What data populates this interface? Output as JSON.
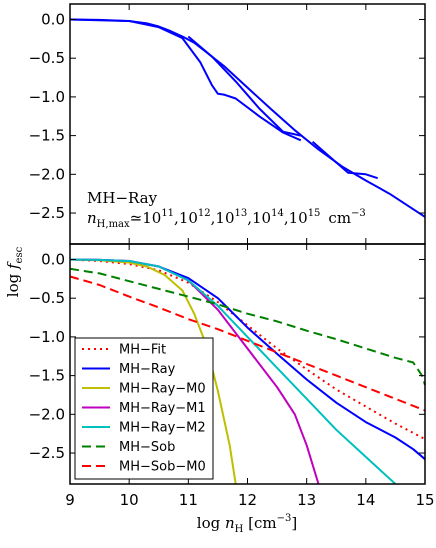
{
  "chart_data": [
    {
      "panel": "top",
      "type": "line",
      "xlim": [
        9,
        15
      ],
      "ylim": [
        -2.9,
        0.2
      ],
      "x_ticks": [
        "9",
        "10",
        "11",
        "12",
        "13",
        "14",
        "15"
      ],
      "y_ticks": [
        "0.0",
        "−0.5",
        "−1.0",
        "−1.5",
        "−2.0",
        "−2.5"
      ],
      "y_tick_values": [
        0.0,
        -0.5,
        -1.0,
        -1.5,
        -2.0,
        -2.5
      ],
      "annotation_line1": "MH−Ray",
      "annotation_line2_prefix": "n",
      "annotation_line2_sub": "H,max",
      "annotation_line2_rest": "≃10",
      "annotation_exps": [
        "11",
        "12",
        "13",
        "14",
        "15"
      ],
      "annotation_unit": "cm",
      "annotation_unit_exp": "−3",
      "series": [
        {
          "color": "#0000ff",
          "dash": "solid",
          "x": [
            9.0,
            9.5,
            10.0,
            10.3,
            10.5,
            10.7,
            10.9,
            11.1,
            11.3,
            11.6,
            12.0,
            12.4,
            12.8,
            13.2,
            13.6,
            14.0,
            14.4,
            14.8,
            15.0
          ],
          "y": [
            0.0,
            -0.005,
            -0.02,
            -0.05,
            -0.09,
            -0.15,
            -0.22,
            -0.3,
            -0.42,
            -0.6,
            -0.88,
            -1.16,
            -1.43,
            -1.68,
            -1.9,
            -2.08,
            -2.25,
            -2.45,
            -2.55
          ]
        },
        {
          "color": "#0000ff",
          "dash": "solid",
          "x": [
            9.0,
            10.0,
            10.5,
            10.9,
            11.2,
            11.4,
            11.5,
            11.6,
            11.8,
            12.2,
            12.6,
            12.9
          ],
          "y": [
            0.0,
            -0.02,
            -0.1,
            -0.24,
            -0.55,
            -0.85,
            -0.96,
            -0.97,
            -1.02,
            -1.25,
            -1.46,
            -1.56
          ]
        },
        {
          "color": "#0000ff",
          "dash": "solid",
          "x": [
            11.0,
            11.4,
            11.8,
            12.2,
            12.6,
            12.9
          ],
          "y": [
            -0.22,
            -0.48,
            -0.8,
            -1.15,
            -1.45,
            -1.5
          ]
        },
        {
          "color": "#0000ff",
          "dash": "solid",
          "x": [
            13.1,
            13.4,
            13.7,
            14.0,
            14.2
          ],
          "y": [
            -1.58,
            -1.78,
            -1.98,
            -2.0,
            -2.05
          ]
        }
      ]
    },
    {
      "panel": "bottom",
      "type": "line",
      "xlim": [
        9,
        15
      ],
      "ylim": [
        -2.9,
        0.2
      ],
      "x_ticks": [
        "9",
        "10",
        "11",
        "12",
        "13",
        "14",
        "15"
      ],
      "y_ticks": [
        "0.0",
        "−0.5",
        "−1.0",
        "−1.5",
        "−2.0",
        "−2.5"
      ],
      "y_tick_values": [
        0.0,
        -0.5,
        -1.0,
        -1.5,
        -2.0,
        -2.5
      ],
      "series": [
        {
          "name": "MH−Fit",
          "color": "#ff0000",
          "dash": "dotted",
          "x": [
            9.0,
            9.5,
            10.0,
            10.5,
            11.0,
            11.5,
            12.0,
            12.5,
            13.0,
            13.5,
            14.0,
            14.5,
            15.0
          ],
          "y": [
            0.0,
            -0.02,
            -0.06,
            -0.14,
            -0.3,
            -0.55,
            -0.85,
            -1.15,
            -1.42,
            -1.68,
            -1.9,
            -2.12,
            -2.32
          ]
        },
        {
          "name": "MH−Ray",
          "color": "#0000ff",
          "dash": "solid",
          "x": [
            9.0,
            9.5,
            10.0,
            10.5,
            11.0,
            11.5,
            12.0,
            12.5,
            13.0,
            13.5,
            14.0,
            14.5,
            14.8,
            15.0
          ],
          "y": [
            0.0,
            -0.005,
            -0.02,
            -0.09,
            -0.24,
            -0.5,
            -0.88,
            -1.22,
            -1.55,
            -1.85,
            -2.1,
            -2.3,
            -2.45,
            -2.58
          ]
        },
        {
          "name": "MH−Ray−M0",
          "color": "#bfbf00",
          "dash": "solid",
          "x": [
            9.0,
            9.5,
            10.0,
            10.3,
            10.6,
            10.9,
            11.1,
            11.3,
            11.5,
            11.7,
            11.8
          ],
          "y": [
            0.0,
            -0.01,
            -0.04,
            -0.09,
            -0.2,
            -0.4,
            -0.7,
            -1.1,
            -1.7,
            -2.4,
            -2.9
          ]
        },
        {
          "name": "MH−Ray−M1",
          "color": "#bf00bf",
          "dash": "solid",
          "x": [
            9.0,
            9.5,
            10.0,
            10.5,
            11.0,
            11.5,
            12.0,
            12.5,
            12.8,
            13.0,
            13.2
          ],
          "y": [
            0.0,
            -0.005,
            -0.02,
            -0.09,
            -0.27,
            -0.65,
            -1.15,
            -1.65,
            -2.0,
            -2.4,
            -2.9
          ]
        },
        {
          "name": "MH−Ray−M2",
          "color": "#00bfbf",
          "dash": "solid",
          "x": [
            9.0,
            9.5,
            10.0,
            10.5,
            11.0,
            11.5,
            12.0,
            12.5,
            13.0,
            13.5,
            14.0,
            14.5
          ],
          "y": [
            0.0,
            -0.005,
            -0.02,
            -0.09,
            -0.27,
            -0.6,
            -1.0,
            -1.4,
            -1.8,
            -2.2,
            -2.55,
            -2.9
          ]
        },
        {
          "name": "MH−Sob",
          "color": "#007f00",
          "dash": "dashed",
          "x": [
            9.0,
            9.5,
            10.0,
            10.5,
            11.0,
            11.5,
            12.0,
            12.5,
            13.0,
            13.5,
            14.0,
            14.5,
            14.8,
            14.95,
            15.0
          ],
          "y": [
            -0.12,
            -0.18,
            -0.28,
            -0.38,
            -0.48,
            -0.58,
            -0.7,
            -0.8,
            -0.92,
            -1.03,
            -1.15,
            -1.27,
            -1.33,
            -1.5,
            -1.62
          ]
        },
        {
          "name": "MH−Sob−M0",
          "color": "#ff0000",
          "dash": "dashed",
          "x": [
            9.0,
            9.5,
            10.0,
            10.5,
            11.0,
            11.5,
            12.0,
            12.5,
            13.0,
            13.5,
            14.0,
            14.5,
            15.0
          ],
          "y": [
            -0.22,
            -0.33,
            -0.48,
            -0.62,
            -0.77,
            -0.9,
            -1.05,
            -1.2,
            -1.35,
            -1.5,
            -1.65,
            -1.8,
            -1.95
          ]
        }
      ]
    }
  ],
  "axes": {
    "xlabel_main": "log ",
    "xlabel_var": "n",
    "xlabel_sub": "H",
    "xlabel_unit": " [cm",
    "xlabel_unit_exp": "−3",
    "xlabel_close": "]",
    "ylabel_main": "log ",
    "ylabel_var": "f",
    "ylabel_sub": "esc"
  }
}
